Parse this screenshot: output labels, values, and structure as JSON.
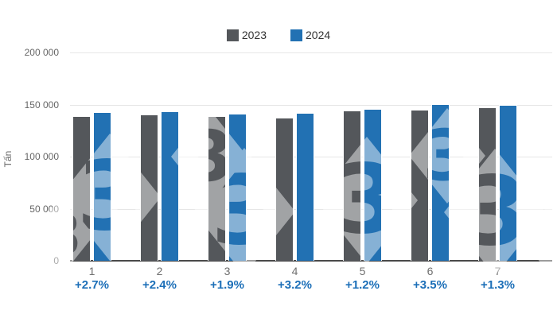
{
  "legend": {
    "items": [
      {
        "label": "2023",
        "color": "#54575b"
      },
      {
        "label": "2024",
        "color": "#2271b3"
      }
    ]
  },
  "watermark": {
    "digit": "3"
  },
  "chart_data": {
    "type": "bar",
    "title": "",
    "ylabel": "Tấn",
    "xlabel": "",
    "ylim": [
      0,
      200000
    ],
    "yticks": [
      0,
      50000,
      100000,
      150000,
      200000
    ],
    "ytick_labels": [
      "0",
      "50 000",
      "100 000",
      "150 000",
      "200 000"
    ],
    "grid": true,
    "legend_position": "top",
    "categories": [
      "1",
      "2",
      "3",
      "4",
      "5",
      "6",
      "7"
    ],
    "series": [
      {
        "name": "2023",
        "color": "#54575b",
        "values": [
          138800,
          140500,
          138600,
          137500,
          144300,
          145200,
          147700
        ]
      },
      {
        "name": "2024",
        "color": "#2271b3",
        "values": [
          142500,
          143900,
          141200,
          141900,
          146000,
          150300,
          149600
        ]
      }
    ],
    "change_labels": [
      "+2.7%",
      "+2.4%",
      "+1.9%",
      "+3.2%",
      "+1.2%",
      "+3.5%",
      "+1.3%"
    ],
    "change_label_color": "#1c6fb8"
  }
}
